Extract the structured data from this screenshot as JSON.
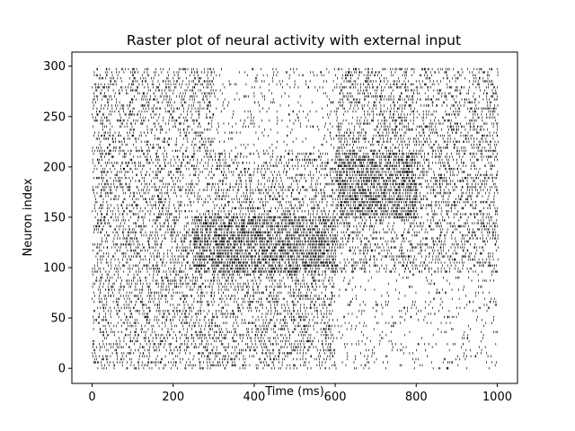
{
  "chart_data": {
    "type": "scatter",
    "subtype": "raster",
    "title": "Raster plot of neural activity with external input",
    "xlabel": "Time (ms)",
    "ylabel": "Neuron index",
    "xlim": [
      -50,
      1050
    ],
    "ylim": [
      -15,
      314
    ],
    "xticks": [
      0,
      200,
      400,
      600,
      800,
      1000
    ],
    "yticks": [
      0,
      50,
      100,
      150,
      200,
      250,
      300
    ],
    "neuron_range": [
      0,
      299
    ],
    "time_range": [
      0,
      1000
    ],
    "marker": "|",
    "marker_color": "#000000",
    "grid": false,
    "legend": "none",
    "activity_bands": [
      {
        "neurons": [
          95,
          150
        ],
        "time": [
          250,
          600
        ],
        "rate": "high"
      },
      {
        "neurons": [
          150,
          215
        ],
        "time": [
          600,
          800
        ],
        "rate": "high"
      },
      {
        "neurons": [
          0,
          95
        ],
        "time": [
          600,
          1000
        ],
        "rate": "low"
      },
      {
        "neurons": [
          215,
          299
        ],
        "time": [
          300,
          600
        ],
        "rate": "low"
      }
    ]
  }
}
